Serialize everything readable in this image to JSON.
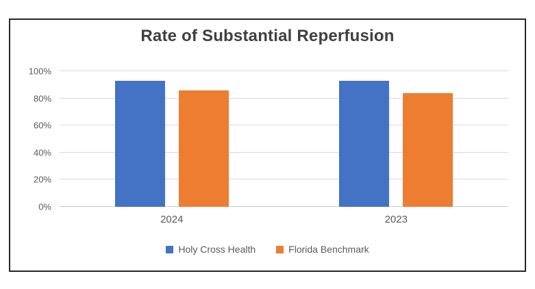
{
  "chart_data": {
    "type": "bar",
    "title": "Rate of Substantial Reperfusion",
    "categories": [
      "2024",
      "2023"
    ],
    "series": [
      {
        "name": "Holy Cross Health",
        "color": "#4472C4",
        "values": [
          93,
          93
        ]
      },
      {
        "name": "Florida Benchmark",
        "color": "#ED7D31",
        "values": [
          86,
          84
        ]
      }
    ],
    "ylim": [
      0,
      100
    ],
    "ytick_values": [
      0,
      20,
      40,
      60,
      80,
      100
    ],
    "yticks": [
      "0%",
      "20%",
      "40%",
      "60%",
      "80%",
      "100%"
    ],
    "grid": "horizontal",
    "legend_position": "bottom",
    "colors": {
      "title_text": "#404040",
      "axis_text": "#595959",
      "gridline": "#D9D9D9",
      "frame_border": "#262626",
      "background": "#FFFFFF"
    }
  }
}
